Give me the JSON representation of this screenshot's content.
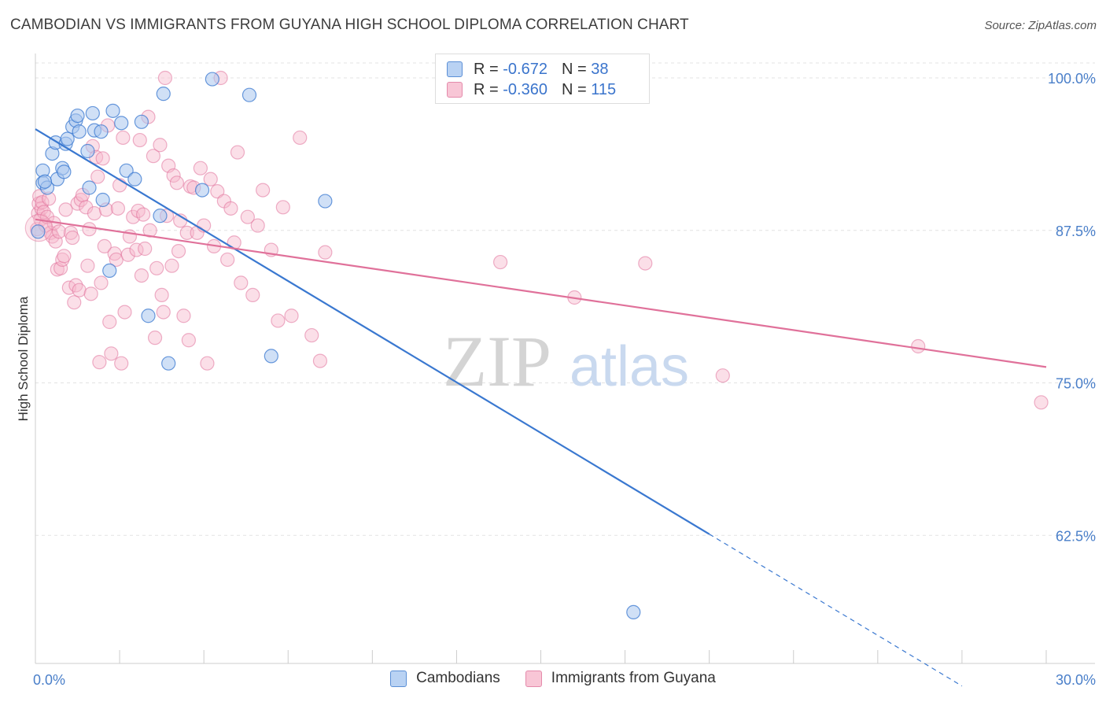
{
  "header": {
    "title": "CAMBODIAN VS IMMIGRANTS FROM GUYANA HIGH SCHOOL DIPLOMA CORRELATION CHART",
    "source": "Source: ZipAtlas.com"
  },
  "colors": {
    "blue": "#3a78d0",
    "blue_fill": "#a9c6ef",
    "pink": "#e0719a",
    "pink_fill": "#f6b8cc",
    "tick_label": "#4a7fc9",
    "grid": "#e3e3e3"
  },
  "legend": {
    "r_label": "R =",
    "n_label": "N =",
    "rows": [
      {
        "r": "-0.672",
        "n": "38"
      },
      {
        "r": "-0.360",
        "n": "115"
      }
    ]
  },
  "watermark": {
    "zip": "ZIP",
    "atlas": "atlas"
  },
  "chart_data": {
    "type": "scatter",
    "title": "CAMBODIAN VS IMMIGRANTS FROM GUYANA HIGH SCHOOL DIPLOMA CORRELATION CHART",
    "xlabel": "",
    "ylabel": "High School Diploma",
    "xlim": [
      0,
      30
    ],
    "ylim": [
      52.0,
      102.0
    ],
    "x_tick_labels": [
      "0.0%",
      "30.0%"
    ],
    "y_ticks": [
      62.5,
      75.0,
      87.5,
      100.0
    ],
    "y_tick_labels": [
      "62.5%",
      "75.0%",
      "87.5%",
      "100.0%"
    ],
    "grid": true,
    "legend_position": "top-center",
    "series": [
      {
        "name": "Cambodians",
        "r": -0.672,
        "n": 38,
        "trend": {
          "x0": 0.0,
          "y0": 95.8,
          "x1": 20.0,
          "y1": 62.6,
          "dashed_to_x": 27.5
        },
        "points": [
          [
            0.08,
            87.4
          ],
          [
            0.22,
            92.4
          ],
          [
            0.22,
            91.4
          ],
          [
            0.35,
            91.0
          ],
          [
            0.5,
            93.8
          ],
          [
            0.6,
            94.7
          ],
          [
            0.65,
            91.7
          ],
          [
            0.8,
            92.6
          ],
          [
            0.85,
            92.3
          ],
          [
            0.9,
            94.6
          ],
          [
            0.95,
            95.0
          ],
          [
            1.1,
            96.0
          ],
          [
            1.2,
            96.5
          ],
          [
            1.25,
            96.9
          ],
          [
            1.3,
            95.6
          ],
          [
            1.55,
            94.0
          ],
          [
            1.6,
            91.0
          ],
          [
            1.7,
            97.1
          ],
          [
            1.75,
            95.7
          ],
          [
            1.95,
            95.6
          ],
          [
            2.0,
            90.0
          ],
          [
            2.2,
            84.2
          ],
          [
            2.3,
            97.3
          ],
          [
            2.55,
            96.3
          ],
          [
            2.7,
            92.4
          ],
          [
            2.95,
            91.7
          ],
          [
            3.15,
            96.4
          ],
          [
            3.35,
            80.5
          ],
          [
            3.7,
            88.7
          ],
          [
            3.8,
            98.7
          ],
          [
            3.95,
            76.6
          ],
          [
            4.95,
            90.8
          ],
          [
            5.25,
            99.9
          ],
          [
            6.35,
            98.6
          ],
          [
            7.0,
            77.2
          ],
          [
            8.6,
            89.9
          ],
          [
            17.75,
            56.2
          ],
          [
            0.28,
            91.5
          ]
        ]
      },
      {
        "name": "Immigrants from Guyana",
        "r": -0.36,
        "n": 115,
        "trend": {
          "x0": 0.0,
          "y0": 88.4,
          "x1": 30.0,
          "y1": 76.3
        },
        "points": [
          [
            0.05,
            87.6
          ],
          [
            0.08,
            88.9
          ],
          [
            0.1,
            89.7
          ],
          [
            0.12,
            90.3
          ],
          [
            0.15,
            88.4
          ],
          [
            0.18,
            89.3
          ],
          [
            0.2,
            89.8
          ],
          [
            0.25,
            89.0
          ],
          [
            0.3,
            87.9
          ],
          [
            0.35,
            88.6
          ],
          [
            0.4,
            90.1
          ],
          [
            0.45,
            87.3
          ],
          [
            0.5,
            87.0
          ],
          [
            0.55,
            88.1
          ],
          [
            0.6,
            86.6
          ],
          [
            0.65,
            84.3
          ],
          [
            0.7,
            87.4
          ],
          [
            0.75,
            84.4
          ],
          [
            0.8,
            85.1
          ],
          [
            0.85,
            85.4
          ],
          [
            0.9,
            89.2
          ],
          [
            1.0,
            82.8
          ],
          [
            1.05,
            87.3
          ],
          [
            1.1,
            86.9
          ],
          [
            1.15,
            81.6
          ],
          [
            1.2,
            83.0
          ],
          [
            1.25,
            89.7
          ],
          [
            1.3,
            82.6
          ],
          [
            1.35,
            90.0
          ],
          [
            1.4,
            90.4
          ],
          [
            1.5,
            89.4
          ],
          [
            1.55,
            84.6
          ],
          [
            1.6,
            87.6
          ],
          [
            1.65,
            82.3
          ],
          [
            1.7,
            94.4
          ],
          [
            1.75,
            88.9
          ],
          [
            1.8,
            93.5
          ],
          [
            1.85,
            91.9
          ],
          [
            1.9,
            76.7
          ],
          [
            1.95,
            83.2
          ],
          [
            2.0,
            93.4
          ],
          [
            2.05,
            86.2
          ],
          [
            2.1,
            89.2
          ],
          [
            2.15,
            96.1
          ],
          [
            2.2,
            80.0
          ],
          [
            2.25,
            77.4
          ],
          [
            2.35,
            85.6
          ],
          [
            2.4,
            85.1
          ],
          [
            2.45,
            89.3
          ],
          [
            2.5,
            91.2
          ],
          [
            2.55,
            76.6
          ],
          [
            2.6,
            95.1
          ],
          [
            2.65,
            80.8
          ],
          [
            2.75,
            85.5
          ],
          [
            2.8,
            87.0
          ],
          [
            2.9,
            88.6
          ],
          [
            3.0,
            85.9
          ],
          [
            3.05,
            89.1
          ],
          [
            3.1,
            94.9
          ],
          [
            3.15,
            83.8
          ],
          [
            3.2,
            88.8
          ],
          [
            3.25,
            86.0
          ],
          [
            3.35,
            96.8
          ],
          [
            3.4,
            87.5
          ],
          [
            3.5,
            93.6
          ],
          [
            3.55,
            78.7
          ],
          [
            3.6,
            84.4
          ],
          [
            3.7,
            94.5
          ],
          [
            3.75,
            82.2
          ],
          [
            3.8,
            80.8
          ],
          [
            3.85,
            100.0
          ],
          [
            3.9,
            88.7
          ],
          [
            3.95,
            92.8
          ],
          [
            4.05,
            84.6
          ],
          [
            4.1,
            92.0
          ],
          [
            4.2,
            91.4
          ],
          [
            4.25,
            85.8
          ],
          [
            4.3,
            88.3
          ],
          [
            4.4,
            80.5
          ],
          [
            4.5,
            87.3
          ],
          [
            4.55,
            78.5
          ],
          [
            4.6,
            91.1
          ],
          [
            4.7,
            91.0
          ],
          [
            4.8,
            87.3
          ],
          [
            4.9,
            92.6
          ],
          [
            5.0,
            87.9
          ],
          [
            5.1,
            76.6
          ],
          [
            5.2,
            91.7
          ],
          [
            5.3,
            86.2
          ],
          [
            5.4,
            90.7
          ],
          [
            5.5,
            100.0
          ],
          [
            5.6,
            89.9
          ],
          [
            5.7,
            85.1
          ],
          [
            5.8,
            89.3
          ],
          [
            5.9,
            86.5
          ],
          [
            6.0,
            93.9
          ],
          [
            6.1,
            83.2
          ],
          [
            6.3,
            88.6
          ],
          [
            6.45,
            82.2
          ],
          [
            6.6,
            87.9
          ],
          [
            6.75,
            90.8
          ],
          [
            7.0,
            85.9
          ],
          [
            7.2,
            80.1
          ],
          [
            7.35,
            89.4
          ],
          [
            7.6,
            80.5
          ],
          [
            7.85,
            95.1
          ],
          [
            8.2,
            78.9
          ],
          [
            8.45,
            76.8
          ],
          [
            8.6,
            85.7
          ],
          [
            13.8,
            84.9
          ],
          [
            16.0,
            82.0
          ],
          [
            18.1,
            84.8
          ],
          [
            20.4,
            75.6
          ],
          [
            26.2,
            78.0
          ],
          [
            29.85,
            73.4
          ]
        ]
      }
    ]
  },
  "bottom_legend": {
    "items": [
      {
        "label": "Cambodians"
      },
      {
        "label": "Immigrants from Guyana"
      }
    ]
  }
}
